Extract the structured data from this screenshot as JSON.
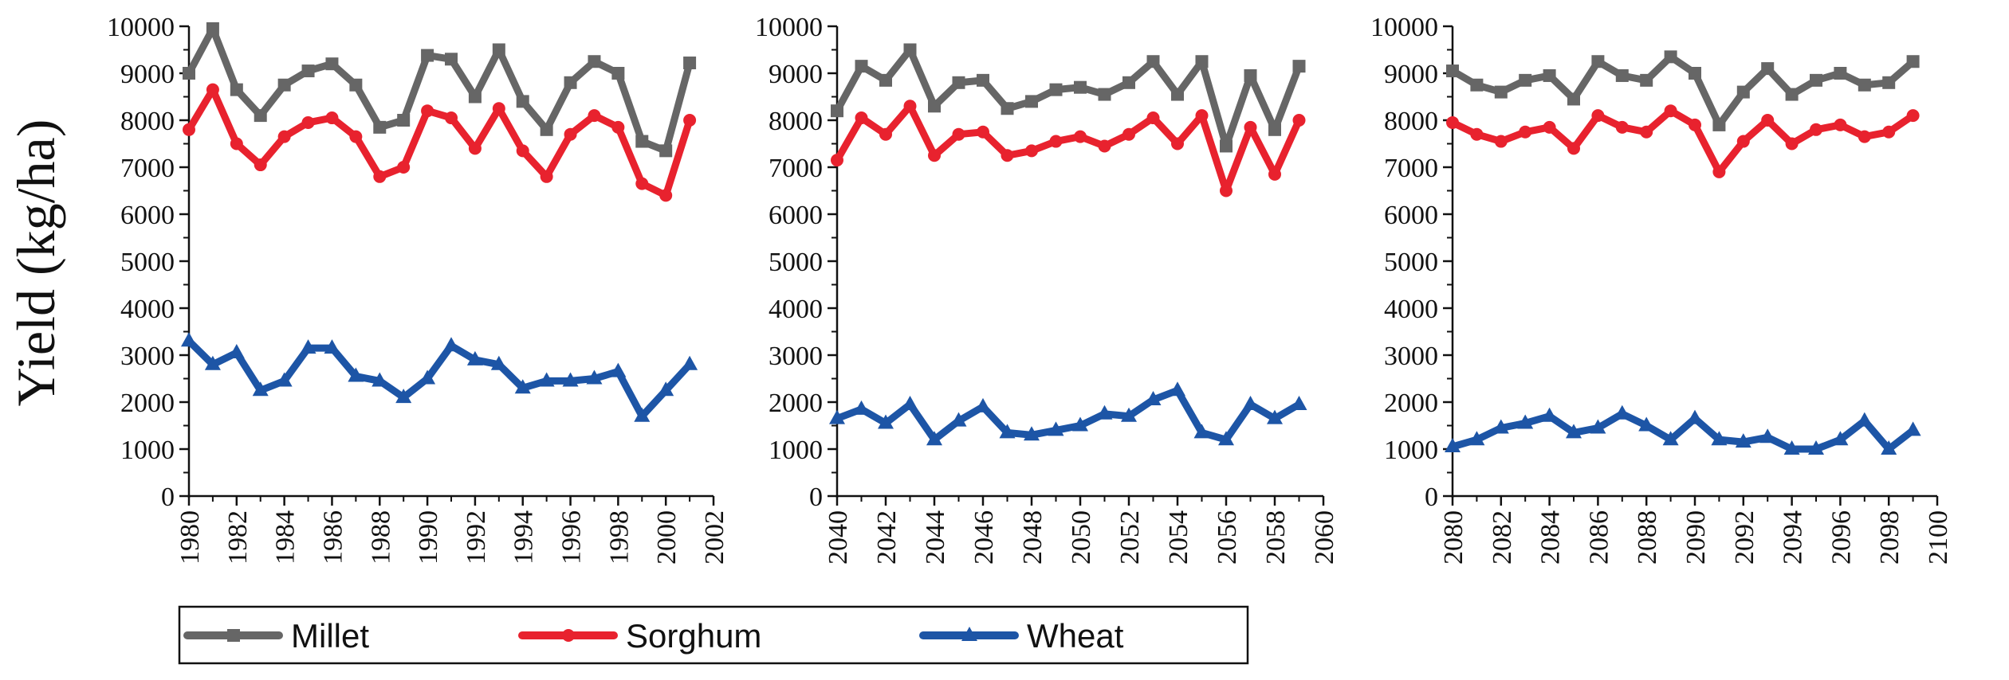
{
  "figure": {
    "ylabel": "Yield (kg/ha)"
  },
  "colors": {
    "Millet": "#666666",
    "Sorghum": "#e8222e",
    "Wheat": "#1d55a6",
    "axis": "#111111"
  },
  "legend": [
    {
      "label": "Millet",
      "marker": "square"
    },
    {
      "label": "Sorghum",
      "marker": "circle"
    },
    {
      "label": "Wheat",
      "marker": "triangle"
    }
  ],
  "chart_data": [
    {
      "type": "line",
      "xlim": [
        1980,
        2002
      ],
      "ylim": [
        0,
        10000
      ],
      "xticks": [
        1980,
        1982,
        1984,
        1986,
        1988,
        1990,
        1992,
        1994,
        1996,
        1998,
        2000,
        2002
      ],
      "yticks": [
        0,
        1000,
        2000,
        3000,
        4000,
        5000,
        6000,
        7000,
        8000,
        9000,
        10000
      ],
      "ylabel": "Yield (kg/ha)",
      "x": [
        1980,
        1981,
        1982,
        1983,
        1984,
        1985,
        1986,
        1987,
        1988,
        1989,
        1990,
        1991,
        1992,
        1993,
        1994,
        1995,
        1996,
        1997,
        1998,
        1999,
        2000,
        2001
      ],
      "series": [
        {
          "name": "Millet",
          "marker": "square",
          "values": [
            9000,
            9950,
            8650,
            8100,
            8750,
            9050,
            9200,
            8750,
            7850,
            8000,
            9380,
            9300,
            8500,
            9500,
            8400,
            7800,
            8800,
            9250,
            9000,
            7550,
            7350,
            9220
          ]
        },
        {
          "name": "Sorghum",
          "marker": "circle",
          "values": [
            7800,
            8650,
            7500,
            7050,
            7650,
            7950,
            8050,
            7650,
            6800,
            7000,
            8200,
            8050,
            7400,
            8250,
            7350,
            6800,
            7700,
            8100,
            7850,
            6650,
            6400,
            8000
          ]
        },
        {
          "name": "Wheat",
          "marker": "triangle",
          "values": [
            3300,
            2800,
            3050,
            2250,
            2450,
            3150,
            3150,
            2550,
            2450,
            2100,
            2500,
            3200,
            2900,
            2800,
            2300,
            2450,
            2450,
            2500,
            2650,
            1700,
            2250,
            2800
          ]
        }
      ]
    },
    {
      "type": "line",
      "xlim": [
        2040,
        2060
      ],
      "ylim": [
        0,
        10000
      ],
      "xticks": [
        2040,
        2042,
        2044,
        2046,
        2048,
        2050,
        2052,
        2054,
        2056,
        2058,
        2060
      ],
      "yticks": [
        0,
        1000,
        2000,
        3000,
        4000,
        5000,
        6000,
        7000,
        8000,
        9000,
        10000
      ],
      "x": [
        2040,
        2041,
        2042,
        2043,
        2044,
        2045,
        2046,
        2047,
        2048,
        2049,
        2050,
        2051,
        2052,
        2053,
        2054,
        2055,
        2056,
        2057,
        2058,
        2059
      ],
      "series": [
        {
          "name": "Millet",
          "marker": "square",
          "values": [
            8200,
            9150,
            8850,
            9500,
            8300,
            8800,
            8850,
            8250,
            8400,
            8650,
            8700,
            8550,
            8800,
            9250,
            8550,
            9250,
            7450,
            8950,
            7800,
            9150
          ]
        },
        {
          "name": "Sorghum",
          "marker": "circle",
          "values": [
            7150,
            8050,
            7700,
            8300,
            7250,
            7700,
            7750,
            7250,
            7350,
            7550,
            7650,
            7450,
            7700,
            8050,
            7500,
            8100,
            6500,
            7850,
            6850,
            8000
          ]
        },
        {
          "name": "Wheat",
          "marker": "triangle",
          "values": [
            1650,
            1850,
            1550,
            1950,
            1200,
            1600,
            1900,
            1350,
            1300,
            1400,
            1500,
            1750,
            1700,
            2050,
            2250,
            1350,
            1200,
            1950,
            1650,
            1950
          ]
        }
      ]
    },
    {
      "type": "line",
      "xlim": [
        2080,
        2100
      ],
      "ylim": [
        0,
        10000
      ],
      "xticks": [
        2080,
        2082,
        2084,
        2086,
        2088,
        2090,
        2092,
        2094,
        2096,
        2098,
        2100
      ],
      "yticks": [
        0,
        1000,
        2000,
        3000,
        4000,
        5000,
        6000,
        7000,
        8000,
        9000,
        10000
      ],
      "x": [
        2080,
        2081,
        2082,
        2083,
        2084,
        2085,
        2086,
        2087,
        2088,
        2089,
        2090,
        2091,
        2092,
        2093,
        2094,
        2095,
        2096,
        2097,
        2098,
        2099
      ],
      "series": [
        {
          "name": "Millet",
          "marker": "square",
          "values": [
            9050,
            8750,
            8600,
            8850,
            8950,
            8450,
            9250,
            8950,
            8850,
            9350,
            9000,
            7900,
            8600,
            9100,
            8550,
            8850,
            9000,
            8750,
            8800,
            9250
          ]
        },
        {
          "name": "Sorghum",
          "marker": "circle",
          "values": [
            7950,
            7700,
            7550,
            7750,
            7850,
            7400,
            8100,
            7850,
            7750,
            8200,
            7900,
            6900,
            7550,
            8000,
            7500,
            7800,
            7900,
            7650,
            7750,
            8100
          ]
        },
        {
          "name": "Wheat",
          "marker": "triangle",
          "values": [
            1050,
            1200,
            1450,
            1550,
            1700,
            1350,
            1450,
            1750,
            1500,
            1200,
            1650,
            1200,
            1150,
            1250,
            1000,
            1000,
            1200,
            1600,
            1000,
            1400
          ]
        }
      ]
    }
  ]
}
